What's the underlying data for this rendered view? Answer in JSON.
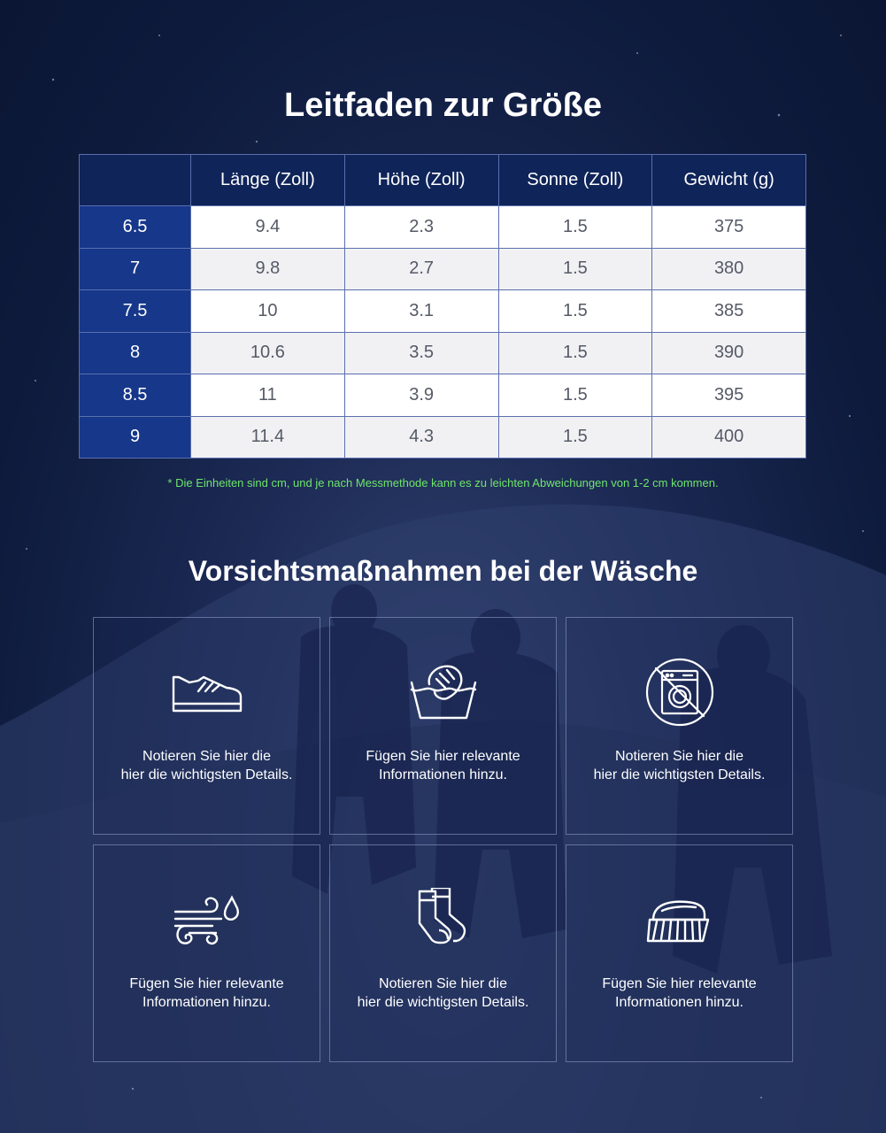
{
  "size_guide": {
    "title": "Leitfaden zur Größe",
    "columns": [
      "Länge (Zoll)",
      "Höhe (Zoll)",
      "Sonne (Zoll)",
      "Gewicht (g)"
    ],
    "rows": [
      {
        "size": "6.5",
        "values": [
          "9.4",
          "2.3",
          "1.5",
          "375"
        ]
      },
      {
        "size": "7",
        "values": [
          "9.8",
          "2.7",
          "1.5",
          "380"
        ]
      },
      {
        "size": "7.5",
        "values": [
          "10",
          "3.1",
          "1.5",
          "385"
        ]
      },
      {
        "size": "8",
        "values": [
          "10.6",
          "3.5",
          "1.5",
          "390"
        ]
      },
      {
        "size": "8.5",
        "values": [
          "11",
          "3.9",
          "1.5",
          "395"
        ]
      },
      {
        "size": "9",
        "values": [
          "11.4",
          "4.3",
          "1.5",
          "400"
        ]
      }
    ],
    "note": "* Die Einheiten sind cm, und je nach Messmethode kann es zu leichten Abweichungen von 1-2 cm kommen."
  },
  "washing": {
    "title": "Vorsichtsmaßnahmen bei der Wäsche",
    "cards": [
      {
        "icon": "shoe-icon",
        "line1": "Notieren Sie hier die",
        "line2": "hier die wichtigsten Details."
      },
      {
        "icon": "hand-wash-icon",
        "line1": "Fügen Sie hier relevante",
        "line2": "Informationen hinzu."
      },
      {
        "icon": "no-machine-wash-icon",
        "line1": "Notieren Sie hier die",
        "line2": "hier die wichtigsten Details."
      },
      {
        "icon": "air-dry-icon",
        "line1": "Fügen Sie hier relevante",
        "line2": "Informationen hinzu."
      },
      {
        "icon": "socks-icon",
        "line1": "Notieren Sie hier die",
        "line2": "hier die wichtigsten Details."
      },
      {
        "icon": "brush-icon",
        "line1": "Fügen Sie hier relevante",
        "line2": "Informationen hinzu."
      }
    ]
  },
  "colors": {
    "background": "#0d1a3a",
    "header_cell": "#0f2459",
    "size_cell": "#16378a",
    "note": "#6fe56a"
  }
}
